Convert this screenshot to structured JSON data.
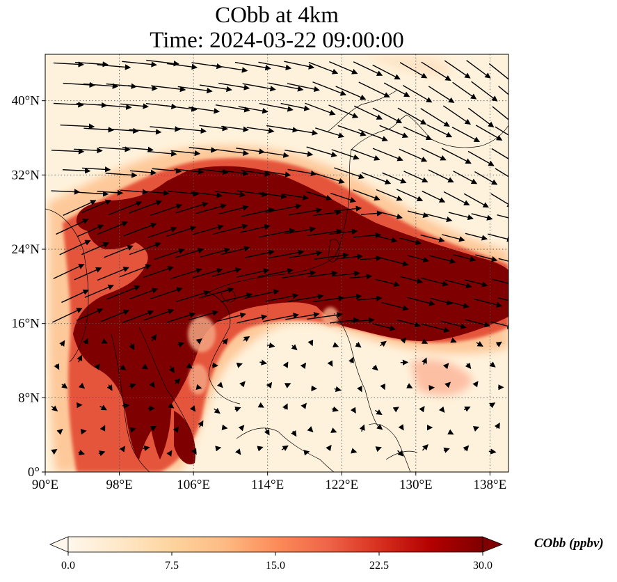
{
  "title": {
    "line1": "CObb at 4km",
    "line2": "Time: 2024-03-22 09:00:00"
  },
  "map": {
    "variable": "CObb",
    "level": "4km",
    "lon_range": [
      90,
      140
    ],
    "lat_range": [
      0,
      45
    ],
    "lon_ticks": [
      "90°E",
      "98°E",
      "106°E",
      "114°E",
      "122°E",
      "130°E",
      "138°E"
    ],
    "lat_ticks": [
      "0°",
      "8°N",
      "16°N",
      "24°N",
      "32°N",
      "40°N"
    ],
    "gridlines": "dotted",
    "features": [
      "coastlines",
      "country borders",
      "wind vectors"
    ],
    "plume_description_colors": {
      "max": "#7f0000",
      "high": "#b30000",
      "mid": "#e34a33",
      "low": "#fdbb84",
      "background": "#fff2dc"
    }
  },
  "colorbar": {
    "label": "CObb (ppbv)",
    "ticks": [
      "0.0",
      "7.5",
      "15.0",
      "22.5",
      "30.0"
    ],
    "min": 0,
    "max": 30,
    "extend": "both",
    "colormap": "OrRd",
    "stops": [
      "#fff7ec",
      "#fee8c8",
      "#fdd49e",
      "#fdbb84",
      "#fc8d59",
      "#ef6548",
      "#d7301f",
      "#b30000",
      "#7f0000"
    ]
  }
}
